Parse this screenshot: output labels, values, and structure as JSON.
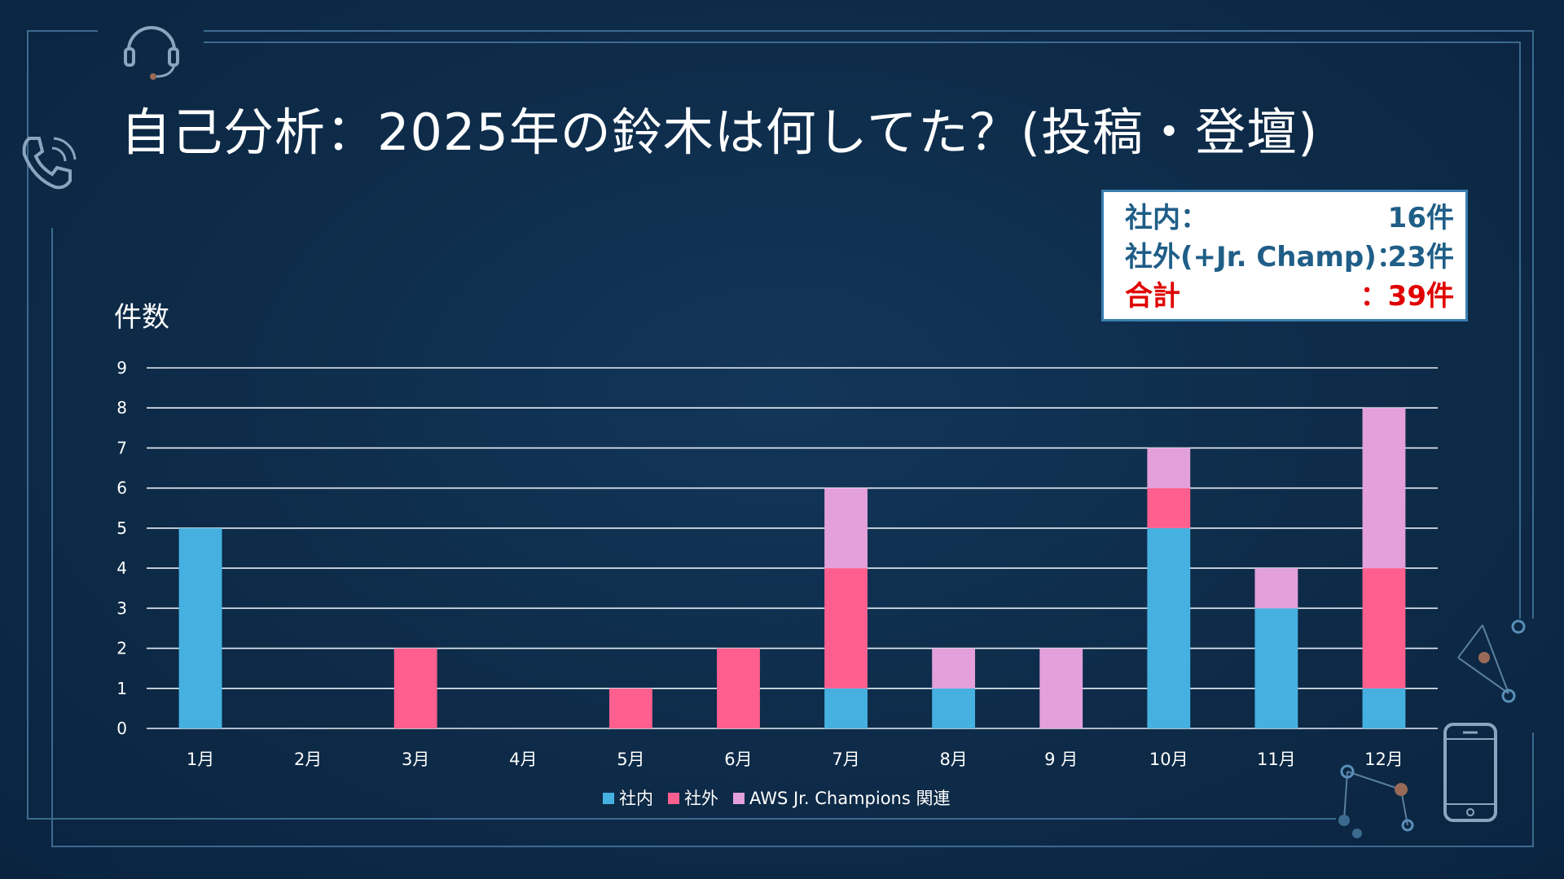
{
  "title": "自己分析：2025年の鈴木は何してた？(投稿・登壇)",
  "summary": {
    "internal_label": "社内：",
    "internal_value": "16件",
    "external_label": "社外(+Jr. Champ)：",
    "external_value": "23件",
    "total_label": "合計",
    "total_value": "：39件"
  },
  "chart_data": {
    "type": "bar",
    "stacked": true,
    "ylabel": "件数",
    "xlabel": "",
    "ylim": [
      0,
      9
    ],
    "yticks": [
      "0",
      "1",
      "2",
      "3",
      "4",
      "5",
      "6",
      "7",
      "8",
      "9"
    ],
    "grid": true,
    "legend_position": "bottom",
    "categories": [
      "1月",
      "2月",
      "3月",
      "4月",
      "5月",
      "6月",
      "7月",
      "8月",
      "9 月",
      "10月",
      "11月",
      "12月"
    ],
    "series": [
      {
        "name": "社内",
        "color": "#46b1e1",
        "values": [
          5,
          0,
          0,
          0,
          0,
          0,
          1,
          1,
          0,
          5,
          3,
          1
        ]
      },
      {
        "name": "社外",
        "color": "#ff5f8f",
        "values": [
          0,
          0,
          2,
          0,
          1,
          2,
          3,
          0,
          0,
          1,
          0,
          3
        ]
      },
      {
        "name": "AWS Jr. Champions 関連",
        "color": "#e3a0db",
        "values": [
          0,
          0,
          0,
          0,
          0,
          0,
          2,
          1,
          2,
          1,
          1,
          4
        ]
      }
    ]
  },
  "icons": [
    "headset-icon",
    "phone-icon",
    "smartphone-icon",
    "network-icon"
  ]
}
